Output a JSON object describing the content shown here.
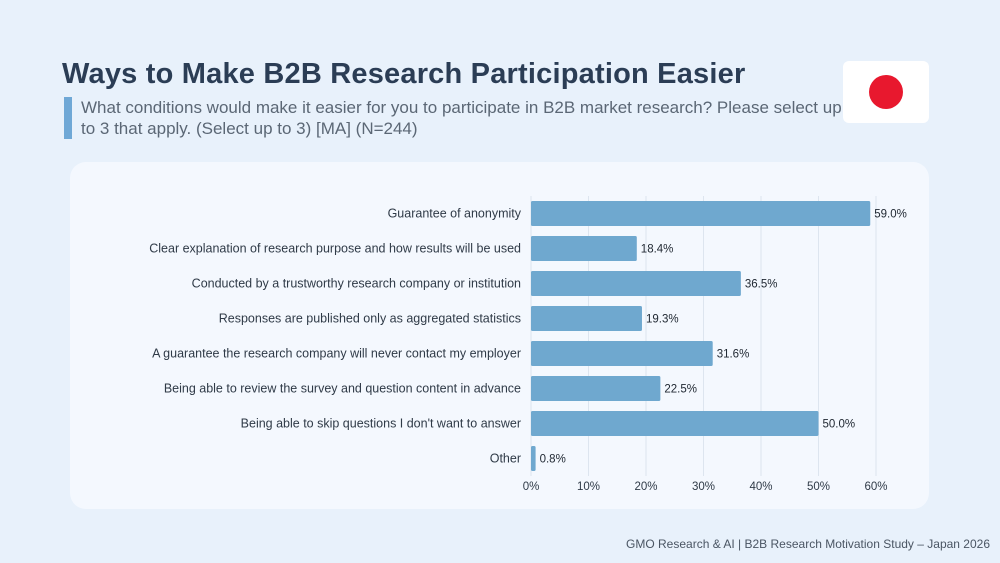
{
  "header": {
    "title": "Ways to Make B2B Research Participation Easier",
    "subtitle": "What conditions would make it easier for you to participate in B2B market research?  Please select up to 3 that apply. (Select up to 3) [MA] (N=244)"
  },
  "flag": {
    "icon": "japan-flag-icon",
    "disc_color": "#e8182e"
  },
  "footer": {
    "text": "GMO Research & AI | B2B Research Motivation Study – Japan 2026"
  },
  "chart_data": {
    "type": "bar",
    "orientation": "horizontal",
    "categories": [
      "Guarantee of anonymity",
      "Clear explanation of research purpose and how results will be used",
      "Conducted by a trustworthy research company or institution",
      "Responses are published only as aggregated statistics",
      "A guarantee the research company will never contact my employer",
      "Being able to review the survey and question content in advance",
      "Being able to skip questions I don't want to answer",
      "Other"
    ],
    "values": [
      59.0,
      18.4,
      36.5,
      19.3,
      31.6,
      22.5,
      50.0,
      0.8
    ],
    "value_labels": [
      "59.0%",
      "18.4%",
      "36.5%",
      "19.3%",
      "31.6%",
      "22.5%",
      "50.0%",
      "0.8%"
    ],
    "xlim": [
      0,
      60
    ],
    "ticks": [
      0,
      10,
      20,
      30,
      40,
      50,
      60
    ],
    "tick_labels": [
      "0%",
      "10%",
      "20%",
      "30%",
      "40%",
      "50%",
      "60%"
    ],
    "bar_color": "#6fa8cf",
    "grid": true,
    "legend": false,
    "title": "",
    "xlabel": "",
    "ylabel": ""
  }
}
